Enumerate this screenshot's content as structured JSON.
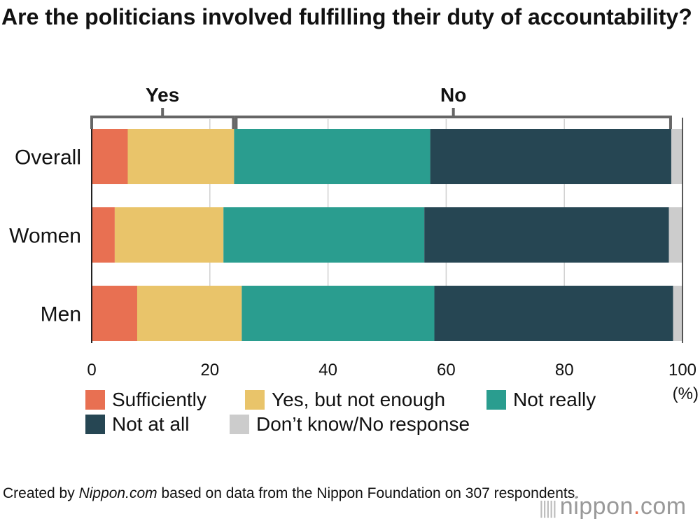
{
  "title": "Are the politicians involved fulfilling their duty of accountability?",
  "chart_data": {
    "type": "bar",
    "orientation": "horizontal",
    "stacked": true,
    "categories": [
      "Overall",
      "Women",
      "Men"
    ],
    "series": [
      {
        "name": "Sufficiently",
        "color": "#e87052",
        "values": [
          6.1,
          3.9,
          7.7
        ]
      },
      {
        "name": "Yes, but not enough",
        "color": "#e9c46a",
        "values": [
          18.0,
          18.4,
          17.7
        ]
      },
      {
        "name": "Not really",
        "color": "#2a9d8f",
        "values": [
          33.2,
          34.0,
          32.6
        ]
      },
      {
        "name": "Not at all",
        "color": "#264653",
        "values": [
          40.8,
          41.4,
          40.4
        ]
      },
      {
        "name": "Don’t know/No response",
        "color": "#cccccc",
        "values": [
          1.9,
          2.3,
          1.6
        ]
      }
    ],
    "xlim": [
      0,
      100
    ],
    "xticks": [
      "0",
      "20",
      "40",
      "60",
      "80",
      "100"
    ],
    "xunit": "(%)",
    "grid": true,
    "legend_placement": "bottom",
    "brackets": [
      {
        "label": "Yes",
        "from": 0,
        "to": 24.1
      },
      {
        "label": "No",
        "from": 24.1,
        "to": 98.1
      }
    ]
  },
  "footer": {
    "prefix": "Created by ",
    "source": "Nippon.com",
    "suffix": " based on data from the Nippon Foundation on 307 respondents."
  },
  "logo": {
    "name": "nippon",
    "dot": ".",
    "tld": "com"
  }
}
